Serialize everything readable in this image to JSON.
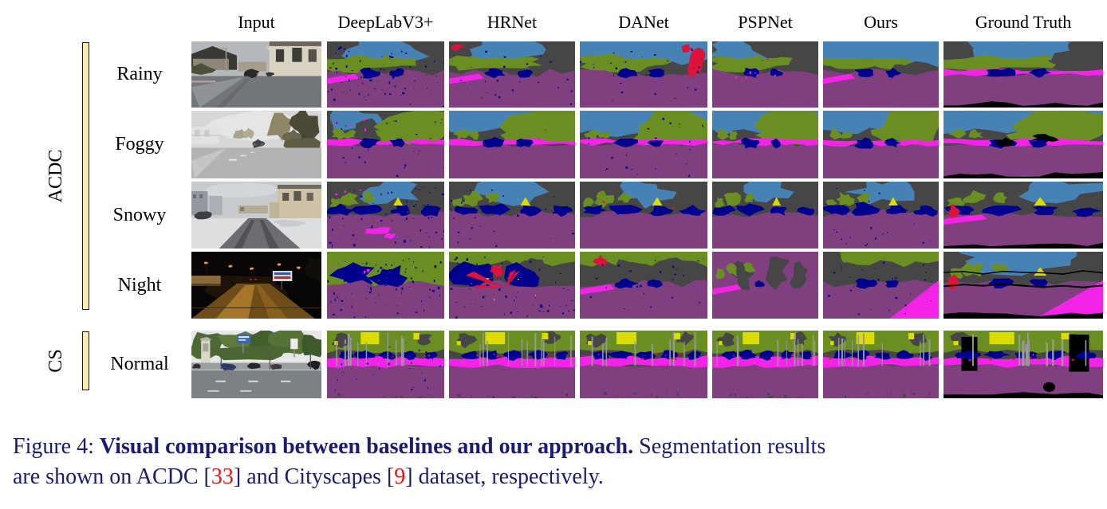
{
  "figure": {
    "columns": [
      "Input",
      "DeepLabV3+",
      "HRNet",
      "DANet",
      "PSPNet",
      "Ours",
      "Ground Truth"
    ],
    "groups": [
      {
        "label": "ACDC",
        "row_start": 0,
        "row_count": 4
      },
      {
        "label": "CS",
        "row_start": 4,
        "row_count": 1
      }
    ],
    "palette": {
      "road": "#804080",
      "sidewalk": "#f423e8",
      "building": "#464646",
      "vegetation": "#6b8e23",
      "sky": "#4682b4",
      "car": "#00008e",
      "person": "#dc143c",
      "pole": "#999999",
      "traffic_sign": "#dcdc00",
      "void": "#000000",
      "group_bar": "#f8ecb4"
    },
    "rows": [
      {
        "label": "Rainy",
        "cells": [
          {
            "role": "photo",
            "scene": "rainy"
          },
          {
            "role": "seg",
            "feats": [
              "sky-mid",
              "veg-band",
              "road",
              "sidewalk-left",
              "cars",
              "noise-heavy"
            ]
          },
          {
            "role": "seg",
            "feats": [
              "sky-mid",
              "red-patch-topleft",
              "veg-band",
              "road",
              "sidewalk-left",
              "cars",
              "noise"
            ]
          },
          {
            "role": "seg",
            "feats": [
              "sky-large",
              "veg-band",
              "road",
              "cars",
              "red-right",
              "noise"
            ]
          },
          {
            "role": "seg",
            "feats": [
              "sky-left",
              "building-right",
              "veg-band",
              "road",
              "cars",
              "sidewalk-specks",
              "red-specks"
            ]
          },
          {
            "role": "seg",
            "feats": [
              "sky-large",
              "veg-band",
              "road",
              "sidewalk-left",
              "cars"
            ]
          },
          {
            "role": "gt",
            "feats": [
              "sky-mid",
              "building-left",
              "building-right",
              "veg-band",
              "road",
              "sidewalk-band",
              "cars",
              "void-bottom"
            ]
          }
        ]
      },
      {
        "label": "Foggy",
        "cells": [
          {
            "role": "photo",
            "scene": "foggy"
          },
          {
            "role": "seg",
            "feats": [
              "sky-left",
              "building-masses",
              "veg-right-huge",
              "road",
              "sidewalk-band",
              "cars",
              "magenta-specks",
              "noise"
            ]
          },
          {
            "role": "seg",
            "feats": [
              "sky-large",
              "veg-right-huge",
              "road",
              "sidewalk-band",
              "cars",
              "red-specks"
            ]
          },
          {
            "role": "seg",
            "feats": [
              "sky-large",
              "veg-right-huge",
              "road",
              "sidewalk-band",
              "cars",
              "noise"
            ]
          },
          {
            "role": "seg",
            "feats": [
              "sky-large",
              "veg-right-huge",
              "road",
              "sidewalk-band",
              "cars"
            ]
          },
          {
            "role": "seg",
            "feats": [
              "sky-large",
              "building-right",
              "veg-right-huge",
              "road",
              "sidewalk-band",
              "cars"
            ]
          },
          {
            "role": "gt",
            "feats": [
              "sky-large",
              "veg-right-huge",
              "road",
              "sidewalk-band",
              "cars",
              "void-patches",
              "void-bottom"
            ]
          }
        ]
      },
      {
        "label": "Snowy",
        "cells": [
          {
            "role": "photo",
            "scene": "snowy"
          },
          {
            "role": "seg",
            "feats": [
              "sky-center",
              "magenta-specks",
              "veg-blobs",
              "road",
              "cars-band",
              "magenta-swirl",
              "yellow-sign",
              "noise-heavy"
            ]
          },
          {
            "role": "seg",
            "feats": [
              "sky-center",
              "veg-blobs",
              "road",
              "cars-band",
              "yellow-sign",
              "noise"
            ]
          },
          {
            "role": "seg",
            "feats": [
              "sky-center",
              "veg-blobs",
              "road",
              "cars-band",
              "yellow-sign",
              "red-specks"
            ]
          },
          {
            "role": "seg",
            "feats": [
              "sky-center",
              "veg-blobs",
              "road",
              "cars-band",
              "yellow-sign"
            ]
          },
          {
            "role": "seg",
            "feats": [
              "sky-center",
              "veg-blobs",
              "road",
              "cars-band",
              "yellow-sign",
              "noise"
            ]
          },
          {
            "role": "gt",
            "feats": [
              "sky-right",
              "veg-blobs",
              "road",
              "cars-band",
              "yellow-sign",
              "red-patch-left",
              "sidewalk-left",
              "void-bottom"
            ]
          }
        ]
      },
      {
        "label": "Night",
        "cells": [
          {
            "role": "photo",
            "scene": "night"
          },
          {
            "role": "seg",
            "feats": [
              "base-veg",
              "cars-huge",
              "road",
              "magenta-specks",
              "noise-heavy"
            ]
          },
          {
            "role": "seg",
            "feats": [
              "veg-top",
              "building-masses",
              "cars-huge",
              "road",
              "red-streaks",
              "yellow-specks",
              "noise-heavy"
            ]
          },
          {
            "role": "seg",
            "feats": [
              "veg-top",
              "building-masses",
              "road",
              "cars",
              "red-patch",
              "sidewalk-left",
              "noise"
            ]
          },
          {
            "role": "seg",
            "feats": [
              "base-road",
              "building-trees",
              "veg-blobs",
              "sidewalk-left",
              "cars-small"
            ]
          },
          {
            "role": "seg",
            "feats": [
              "veg-top",
              "building-left",
              "road",
              "sidewalk-right-large",
              "cars",
              "noise"
            ]
          },
          {
            "role": "gt",
            "feats": [
              "sky-mid",
              "building-left",
              "building-right",
              "veg-blobs",
              "road",
              "sidewalk-right-large",
              "cars",
              "yellow-sign",
              "red-patch-left",
              "void-outlines",
              "void-bottom"
            ]
          }
        ]
      },
      {
        "label": "Normal",
        "cells": [
          {
            "role": "photo",
            "scene": "normal"
          },
          {
            "role": "seg",
            "feats": [
              "veg-top-band",
              "building-patches-top",
              "yellow-signs-top",
              "road-large",
              "sidewalk-band-high",
              "cars-row",
              "persons",
              "poles",
              "gray-bottom-specks",
              "noise"
            ]
          },
          {
            "role": "seg",
            "feats": [
              "veg-top-band",
              "building-patches-top",
              "yellow-signs-top",
              "road-large",
              "sidewalk-band-high",
              "cars-row",
              "persons",
              "poles",
              "gray-bottom-specks"
            ]
          },
          {
            "role": "seg",
            "feats": [
              "veg-top-band",
              "building-patches-top",
              "yellow-signs-top",
              "road-large",
              "sidewalk-band-high",
              "cars-row",
              "persons",
              "poles",
              "gray-bottom-specks"
            ]
          },
          {
            "role": "seg",
            "feats": [
              "veg-top-band",
              "building-patches-top",
              "yellow-signs-top",
              "road-large",
              "sidewalk-band-high",
              "cars-row",
              "persons",
              "poles",
              "gray-bottom-specks"
            ]
          },
          {
            "role": "seg",
            "feats": [
              "veg-top-band",
              "building-patches-top",
              "yellow-signs-top",
              "road-large",
              "sidewalk-band-high",
              "cars-row",
              "persons",
              "poles",
              "gray-bottom-specks"
            ]
          },
          {
            "role": "gt",
            "feats": [
              "veg-top-band",
              "building-patches-top",
              "yellow-signs-top",
              "road-large",
              "sidewalk-band-high",
              "void-rects",
              "cars-row",
              "persons",
              "poles",
              "void-circle",
              "void-bottom"
            ]
          }
        ]
      }
    ],
    "caption": {
      "text_color": "#1b1b70",
      "cite_color": "#ee1111",
      "lines": [
        [
          {
            "t": "Figure 4: "
          },
          {
            "t": "Visual comparison between baselines and our approach.",
            "b": true
          },
          {
            "t": " Segmentation results"
          }
        ],
        [
          {
            "t": "are shown on ACDC ["
          },
          {
            "t": "33",
            "cite": true
          },
          {
            "t": "] and Cityscapes ["
          },
          {
            "t": "9",
            "cite": true
          },
          {
            "t": "] dataset, respectively."
          }
        ]
      ]
    }
  }
}
